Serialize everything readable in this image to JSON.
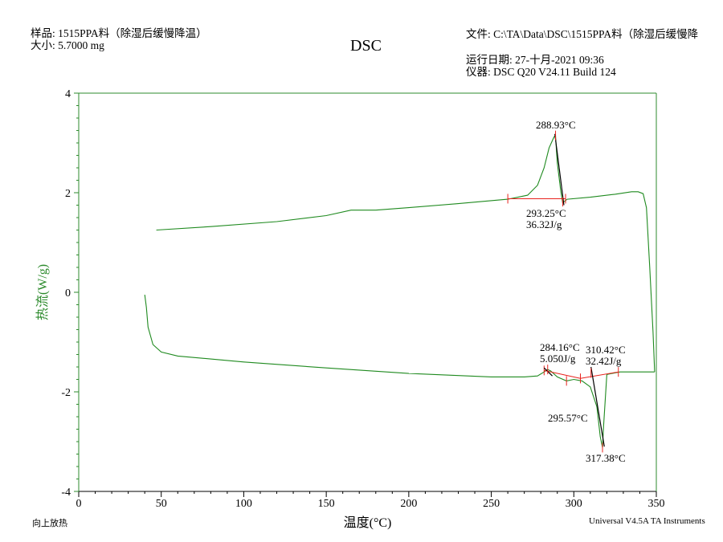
{
  "header": {
    "sample_line": "样品: 1515PPA料（除湿后缓慢降温）",
    "size_line": "大小: 5.7000 mg",
    "file_line": "文件: C:\\TA\\Data\\DSC\\1515PPA料（除湿后缓慢降",
    "run_date_line": "运行日期: 27-十月-2021 09:36",
    "instrument_line": "仪器: DSC Q20 V24.11 Build 124"
  },
  "footer": {
    "exo_label": "向上放热",
    "software_label": "Universal V4.5A TA Instruments"
  },
  "colors": {
    "curve": "#1f8a1f",
    "analysis": "#e8231e",
    "axis_green": "#2e8b2e",
    "tangent": "#000000"
  },
  "chart_data": {
    "type": "line",
    "title": "DSC",
    "xlabel": "温度(°C)",
    "ylabel": "热流(W/g)",
    "xlim": [
      0,
      350
    ],
    "ylim": [
      -4,
      4
    ],
    "xticks": [
      0,
      50,
      100,
      150,
      200,
      250,
      300,
      350
    ],
    "yticks": [
      4,
      2,
      0,
      -2,
      -4
    ],
    "grid": false,
    "series": [
      {
        "segment": "heating",
        "x": [
          47,
          80,
          120,
          150,
          165,
          180,
          200,
          230,
          260,
          272,
          278,
          282,
          285,
          288,
          288.9,
          290,
          292,
          293.25,
          296,
          310,
          325,
          335,
          339,
          342,
          344,
          346,
          348,
          349
        ],
        "y": [
          1.25,
          1.32,
          1.42,
          1.54,
          1.65,
          1.65,
          1.7,
          1.78,
          1.87,
          1.95,
          2.15,
          2.5,
          2.9,
          3.12,
          3.15,
          2.6,
          2.05,
          1.8,
          1.87,
          1.91,
          1.97,
          2.02,
          2.02,
          1.98,
          1.7,
          0.5,
          -0.8,
          -1.6
        ]
      },
      {
        "segment": "cooling",
        "x": [
          349,
          340,
          328,
          320,
          318,
          317.38,
          316,
          314,
          310,
          305,
          300,
          295.57,
          290,
          286,
          284.16,
          282,
          278,
          270,
          250,
          200,
          150,
          100,
          60,
          50,
          45,
          42,
          41,
          40
        ],
        "y": [
          -1.6,
          -1.6,
          -1.6,
          -1.65,
          -2.7,
          -3.12,
          -2.9,
          -2.3,
          -1.9,
          -1.78,
          -1.75,
          -1.78,
          -1.7,
          -1.58,
          -1.55,
          -1.6,
          -1.68,
          -1.7,
          -1.7,
          -1.63,
          -1.52,
          -1.4,
          -1.28,
          -1.2,
          -1.05,
          -0.7,
          -0.3,
          -0.05
        ]
      }
    ],
    "annotations": [
      {
        "text": "288.93°C",
        "x": 288.93,
        "y": 3.15
      },
      {
        "text": "293.25°C",
        "x": 293.25,
        "y": 1.82
      },
      {
        "text": "36.32J/g"
      },
      {
        "text": "284.16°C",
        "x": 284.16,
        "y": -1.55
      },
      {
        "text": "5.050J/g"
      },
      {
        "text": "295.57°C",
        "x": 295.57,
        "y": -1.78
      },
      {
        "text": "310.42°C",
        "x": 310.42,
        "y": -1.62
      },
      {
        "text": "32.42J/g"
      },
      {
        "text": "317.38°C",
        "x": 317.38,
        "y": -3.12
      }
    ],
    "integration_baselines": [
      {
        "x": [
          260,
          295
        ],
        "y": [
          1.88,
          1.88
        ]
      },
      {
        "x": [
          282,
          304
        ],
        "y": [
          -1.57,
          -1.73
        ]
      },
      {
        "x": [
          304,
          327
        ],
        "y": [
          -1.73,
          -1.6
        ]
      }
    ]
  }
}
